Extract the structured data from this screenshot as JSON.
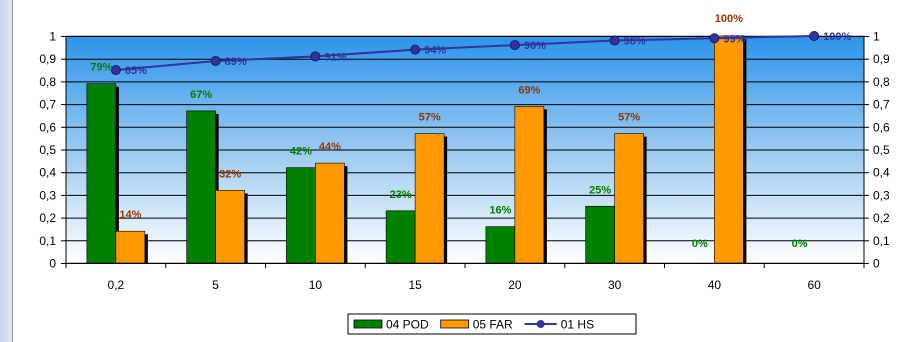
{
  "chart_data": {
    "type": "bar",
    "categories": [
      "0,2",
      "5",
      "10",
      "15",
      "20",
      "30",
      "40",
      "60"
    ],
    "y_ticks": [
      "0",
      "0,1",
      "0,2",
      "0,3",
      "0,4",
      "0,5",
      "0,6",
      "0,7",
      "0,8",
      "0,9",
      "1"
    ],
    "ylim": [
      0,
      1
    ],
    "grid": true,
    "legend_position": "bottom",
    "series": [
      {
        "name": "04 POD",
        "kind": "bar",
        "color": "#008000",
        "values": [
          0.79,
          0.67,
          0.42,
          0.23,
          0.16,
          0.25,
          0,
          0
        ],
        "labels": [
          "79%",
          "67%",
          "42%",
          "23%",
          "16%",
          "25%",
          "0%",
          "0%"
        ],
        "label_color": "#008000"
      },
      {
        "name": "05 FAR",
        "kind": "bar",
        "color": "#ff9900",
        "values": [
          0.14,
          0.32,
          0.44,
          0.57,
          0.69,
          0.57,
          1.0,
          null
        ],
        "labels": [
          "14%",
          "32%",
          "44%",
          "57%",
          "69%",
          "57%",
          "100%",
          ""
        ],
        "label_color": "#993300"
      },
      {
        "name": "01 HS",
        "kind": "line",
        "color": "#333399",
        "values": [
          0.85,
          0.89,
          0.91,
          0.94,
          0.96,
          0.98,
          0.99,
          1.0
        ],
        "labels": [
          "85%",
          "89%",
          "91%",
          "94%",
          "96%",
          "98%",
          "99%",
          "100%"
        ],
        "label_color": "#333399"
      }
    ]
  }
}
